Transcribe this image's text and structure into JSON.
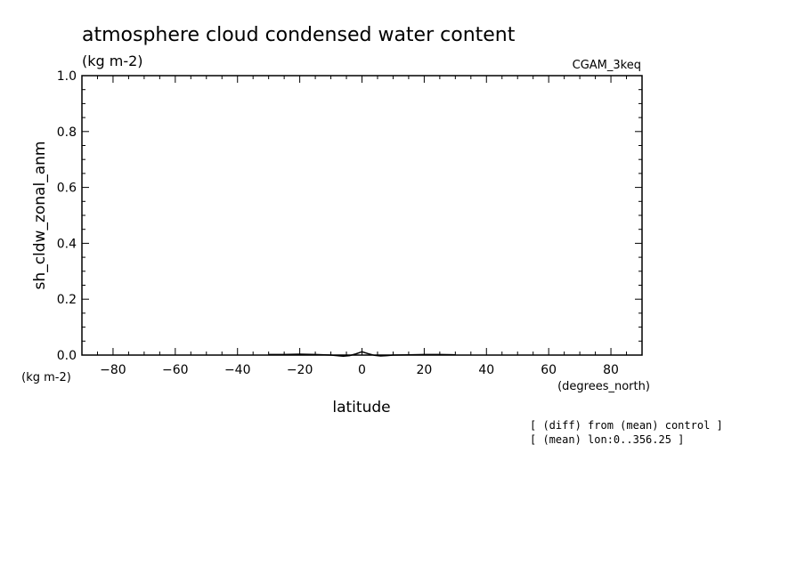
{
  "chart_data": {
    "type": "line",
    "title": "atmosphere cloud condensed water content",
    "subtitle": "(kg m-2)",
    "model_label": "CGAM_3keq",
    "ylabel": "sh_cldw_zonal_anm",
    "yunits": "(kg m-2)",
    "xlabel": "latitude",
    "xunits": "(degrees_north)",
    "xlim": [
      -90,
      90
    ],
    "ylim": [
      0.0,
      1.0
    ],
    "xticks": [
      -80,
      -60,
      -40,
      -20,
      0,
      20,
      40,
      60,
      80
    ],
    "xtick_labels": [
      "-80",
      "-60",
      "-40",
      "-20",
      "0",
      "20",
      "40",
      "60",
      "80"
    ],
    "yticks": [
      0.0,
      0.2,
      0.4,
      0.6,
      0.8,
      1.0
    ],
    "ytick_labels": [
      "0.0",
      "0.2",
      "0.4",
      "0.6",
      "0.8",
      "1.0"
    ],
    "grid": false,
    "notes": [
      "[ (diff) from (mean) control ]",
      "[ (mean) lon:0..356.25 ]"
    ],
    "series": [
      {
        "x": [
          -30,
          -25,
          -20,
          -15,
          -10,
          -8,
          -6,
          -4,
          -2,
          0,
          2,
          4,
          6,
          8,
          10,
          15,
          20,
          25,
          30
        ],
        "values": [
          0.002,
          0.002,
          0.003,
          0.002,
          0.0,
          -0.002,
          -0.004,
          -0.002,
          0.004,
          0.012,
          0.005,
          -0.001,
          -0.003,
          -0.002,
          0.0,
          0.001,
          0.002,
          0.002,
          0.001
        ]
      }
    ]
  }
}
